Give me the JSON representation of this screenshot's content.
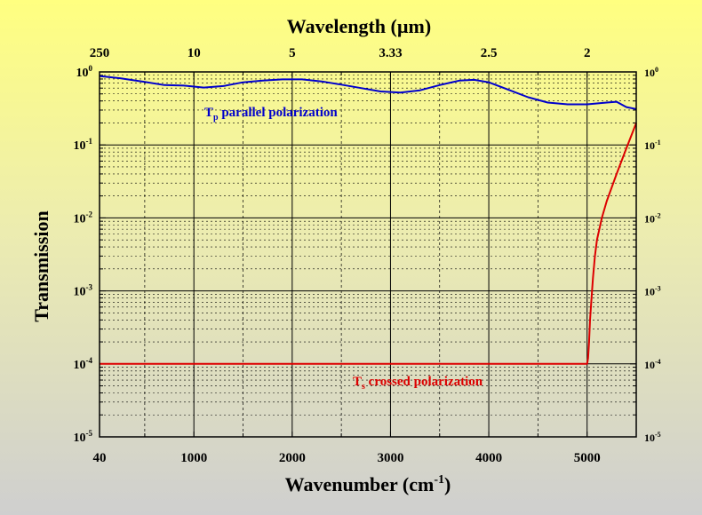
{
  "chart_data": {
    "type": "line",
    "title": "Wavelength (µm)",
    "xlabel": "Wavenumber (cm⁻¹)",
    "ylabel": "Transmission",
    "x_scale": "linear",
    "y_scale": "log",
    "xlim": [
      40,
      5500
    ],
    "ylim": [
      1e-05,
      1
    ],
    "x_ticks": [
      {
        "value": 40,
        "label": "40"
      },
      {
        "value": 1000,
        "label": "1000"
      },
      {
        "value": 2000,
        "label": "2000"
      },
      {
        "value": 3000,
        "label": "3000"
      },
      {
        "value": 4000,
        "label": "4000"
      },
      {
        "value": 5000,
        "label": "5000"
      }
    ],
    "top_ticks": [
      {
        "value": 40,
        "label": "250"
      },
      {
        "value": 1000,
        "label": "10"
      },
      {
        "value": 2000,
        "label": "5"
      },
      {
        "value": 3000,
        "label": "3.33"
      },
      {
        "value": 4000,
        "label": "2.5"
      },
      {
        "value": 5000,
        "label": "2"
      }
    ],
    "y_ticks": [
      {
        "exp": 0,
        "base": "10",
        "sup": "0"
      },
      {
        "exp": -1,
        "base": "10",
        "sup": "-1"
      },
      {
        "exp": -2,
        "base": "10",
        "sup": "-2"
      },
      {
        "exp": -3,
        "base": "10",
        "sup": "-3"
      },
      {
        "exp": -4,
        "base": "10",
        "sup": "-4"
      },
      {
        "exp": -5,
        "base": "10",
        "sup": "-5"
      }
    ],
    "grid": true,
    "series": [
      {
        "name": "Tp parallel polarization",
        "label_main": "T",
        "label_sub": "p",
        "label_rest": " parallel polarization",
        "color": "#0000cc",
        "x": [
          40,
          250,
          500,
          700,
          900,
          1100,
          1300,
          1500,
          1700,
          1900,
          2100,
          2300,
          2500,
          2700,
          2900,
          3100,
          3300,
          3500,
          3700,
          3850,
          4000,
          4200,
          4400,
          4600,
          4800,
          5000,
          5200,
          5300,
          5400,
          5500
        ],
        "y": [
          0.88,
          0.82,
          0.73,
          0.66,
          0.65,
          0.61,
          0.64,
          0.72,
          0.76,
          0.79,
          0.79,
          0.74,
          0.67,
          0.6,
          0.54,
          0.52,
          0.56,
          0.66,
          0.76,
          0.78,
          0.72,
          0.57,
          0.45,
          0.38,
          0.36,
          0.36,
          0.38,
          0.39,
          0.33,
          0.31
        ]
      },
      {
        "name": "Ts crossed polarization",
        "label_main": "T",
        "label_sub": "s",
        "label_rest": " crossed polarization",
        "color": "#dd0000",
        "x": [
          40,
          1000,
          2000,
          3000,
          4000,
          5000,
          5010,
          5020,
          5030,
          5045,
          5060,
          5080,
          5100,
          5150,
          5200,
          5300,
          5400,
          5500
        ],
        "y": [
          0.0001,
          0.0001,
          0.0001,
          0.0001,
          0.0001,
          0.0001,
          0.00012,
          0.0002,
          0.0004,
          0.0008,
          0.0015,
          0.003,
          0.005,
          0.01,
          0.017,
          0.04,
          0.09,
          0.2
        ]
      }
    ]
  }
}
